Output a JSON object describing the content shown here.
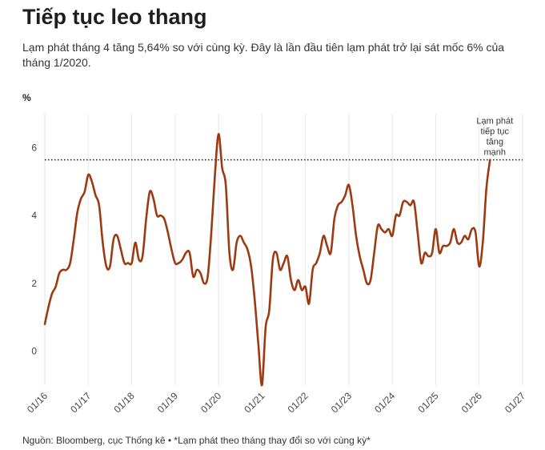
{
  "title": "Tiếp tục leo thang",
  "subtitle": "Lạm phát tháng 4 tăng 5,64% so với cùng kỳ. Đây là lần đầu tiên lạm phát trở lại sát mốc 6% của tháng 1/2020.",
  "unit": "%",
  "source": "Nguồn: Bloomberg, cục Thống kê • *Lạm phát theo tháng thay đổi so với cùng kỳ*",
  "colors": {
    "line": "#9c3a12",
    "grid": "#e6e6e6",
    "reference": "#222222"
  },
  "chart_data": {
    "type": "line",
    "title": "Tiếp tục leo thang",
    "ylabel": "%",
    "ylim": [
      -1,
      7
    ],
    "xlim": [
      "01/16",
      "01/27"
    ],
    "x_ticks": [
      "01/16",
      "01/17",
      "01/18",
      "01/19",
      "01/20",
      "01/21",
      "01/22",
      "01/23",
      "01/24",
      "01/25",
      "01/26",
      "01/27"
    ],
    "y_ticks": [
      0,
      2,
      4,
      6
    ],
    "grid": "vertical",
    "reference_line": {
      "value": 5.64,
      "style": "dotted"
    },
    "annotation": [
      "Lạm phát",
      "tiếp tục",
      "tăng",
      "mạnh"
    ],
    "series": [
      {
        "x": [
          "01/16",
          "02/16",
          "03/16",
          "04/16",
          "05/16",
          "06/16",
          "07/16",
          "08/16",
          "09/16",
          "10/16",
          "11/16",
          "12/16",
          "01/17",
          "02/17",
          "03/17",
          "04/17",
          "05/17",
          "06/17",
          "07/17",
          "08/17",
          "09/17",
          "10/17",
          "11/17",
          "12/17",
          "01/18",
          "02/18",
          "03/18",
          "04/18",
          "05/18",
          "06/18",
          "07/18",
          "08/18",
          "09/18",
          "10/18",
          "11/18",
          "12/18",
          "01/19",
          "02/19",
          "03/19",
          "04/19",
          "05/19",
          "06/19",
          "07/19",
          "08/19",
          "09/19",
          "10/19",
          "11/19",
          "12/19",
          "01/20",
          "02/20",
          "03/20",
          "04/20",
          "05/20",
          "06/20",
          "07/20",
          "08/20",
          "09/20",
          "10/20",
          "11/20",
          "12/20",
          "01/21",
          "02/21",
          "03/21",
          "04/21",
          "05/21",
          "06/21",
          "07/21",
          "08/21",
          "09/21",
          "10/21",
          "11/21",
          "12/21",
          "01/22",
          "02/22",
          "03/22",
          "04/22",
          "05/22",
          "06/22",
          "07/22",
          "08/22",
          "09/22",
          "10/22",
          "11/22",
          "12/22",
          "01/23",
          "02/23",
          "03/23",
          "04/23",
          "05/23",
          "06/23",
          "07/23",
          "08/23",
          "09/23",
          "10/23",
          "11/23",
          "12/23",
          "01/24",
          "02/24",
          "03/24",
          "04/24",
          "05/24",
          "06/24",
          "07/24",
          "08/24",
          "09/24",
          "10/24",
          "11/24",
          "12/24",
          "01/25",
          "02/25",
          "03/25",
          "04/25",
          "05/25",
          "06/25",
          "07/25",
          "08/25",
          "09/25",
          "10/25",
          "11/25",
          "12/25",
          "01/26",
          "02/26",
          "03/26",
          "04/26"
        ],
        "values": [
          0.8,
          1.3,
          1.7,
          1.9,
          2.3,
          2.4,
          2.4,
          2.6,
          3.3,
          4.1,
          4.5,
          4.7,
          5.2,
          5.0,
          4.6,
          4.3,
          3.2,
          2.5,
          2.5,
          3.3,
          3.4,
          3.0,
          2.6,
          2.6,
          2.6,
          3.2,
          2.7,
          2.8,
          3.9,
          4.7,
          4.5,
          4.0,
          4.0,
          3.9,
          3.5,
          3.0,
          2.6,
          2.6,
          2.7,
          2.9,
          2.9,
          2.2,
          2.4,
          2.3,
          2.0,
          2.2,
          3.5,
          5.2,
          6.4,
          5.4,
          4.9,
          2.9,
          2.4,
          3.2,
          3.4,
          3.2,
          3.0,
          2.5,
          1.5,
          0.2,
          -1.0,
          0.7,
          1.2,
          2.7,
          2.9,
          2.4,
          2.6,
          2.8,
          2.1,
          1.8,
          2.1,
          1.8,
          1.9,
          1.4,
          2.4,
          2.6,
          2.9,
          3.4,
          3.1,
          2.9,
          3.9,
          4.3,
          4.4,
          4.6,
          4.9,
          4.3,
          3.4,
          2.8,
          2.4,
          2.0,
          2.1,
          2.9,
          3.7,
          3.6,
          3.5,
          3.6,
          3.4,
          4.0,
          4.0,
          4.4,
          4.4,
          4.3,
          4.4,
          3.5,
          2.6,
          2.9,
          2.8,
          2.9,
          3.6,
          2.9,
          3.1,
          3.1,
          3.2,
          3.6,
          3.2,
          3.2,
          3.4,
          3.3,
          3.6,
          3.5,
          2.5,
          3.2,
          4.8,
          5.64
        ]
      }
    ]
  }
}
